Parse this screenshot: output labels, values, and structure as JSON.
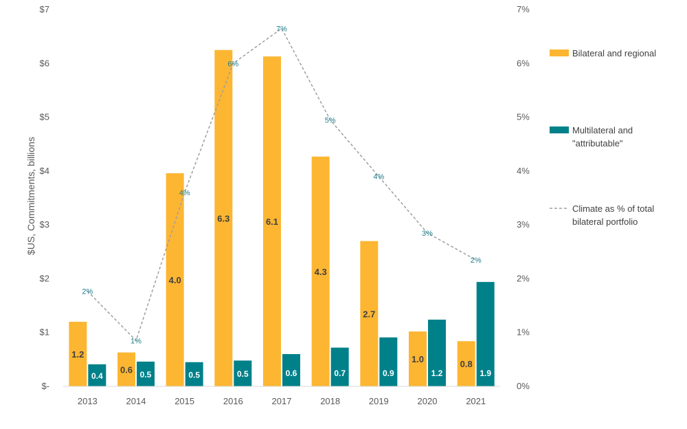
{
  "chart_data": {
    "type": "bar",
    "categories": [
      "2013",
      "2014",
      "2015",
      "2016",
      "2017",
      "2018",
      "2019",
      "2020",
      "2021"
    ],
    "ylabel": "$US, Commitments, billions",
    "y_ticks": [
      "$-",
      "$1",
      "$2",
      "$3",
      "$4",
      "$5",
      "$6",
      "$7"
    ],
    "y2_ticks": [
      "0%",
      "1%",
      "2%",
      "3%",
      "4%",
      "5%",
      "6%",
      "7%"
    ],
    "ylim": [
      0,
      7
    ],
    "y2lim": [
      0,
      7
    ],
    "grid": false,
    "legend_position": "right",
    "series": [
      {
        "name": "Bilateral and regional",
        "type": "bar",
        "color": "#FDB632",
        "values": [
          1.2,
          0.63,
          3.96,
          6.25,
          6.13,
          4.27,
          2.7,
          1.02,
          0.84
        ],
        "labels": [
          "1.2",
          "0.6",
          "4.0",
          "6.3",
          "6.1",
          "4.3",
          "2.7",
          "1.0",
          "0.8"
        ]
      },
      {
        "name": "Multilateral and \"attributable\"",
        "legend_lines": [
          "Multilateral and",
          "\"attributable\""
        ],
        "type": "bar",
        "color": "#00818A",
        "values": [
          0.41,
          0.46,
          0.45,
          0.48,
          0.6,
          0.72,
          0.91,
          1.24,
          1.94
        ],
        "labels": [
          "0.4",
          "0.5",
          "0.5",
          "0.5",
          "0.6",
          "0.7",
          "0.9",
          "1.2",
          "1.9"
        ]
      },
      {
        "name": "Climate as % of total bilateral portfolio",
        "legend_lines": [
          "Climate as % of total",
          "bilateral portfolio"
        ],
        "type": "line",
        "axis": "secondary",
        "style": "dashed",
        "color": "#9E9E9E",
        "values": [
          1.77,
          0.85,
          3.6,
          6.0,
          6.65,
          4.95,
          3.9,
          2.85,
          2.35
        ],
        "labels": [
          "2%",
          "1%",
          "4%",
          "6%",
          "7%",
          "5%",
          "4%",
          "3%",
          "2%"
        ]
      }
    ]
  }
}
